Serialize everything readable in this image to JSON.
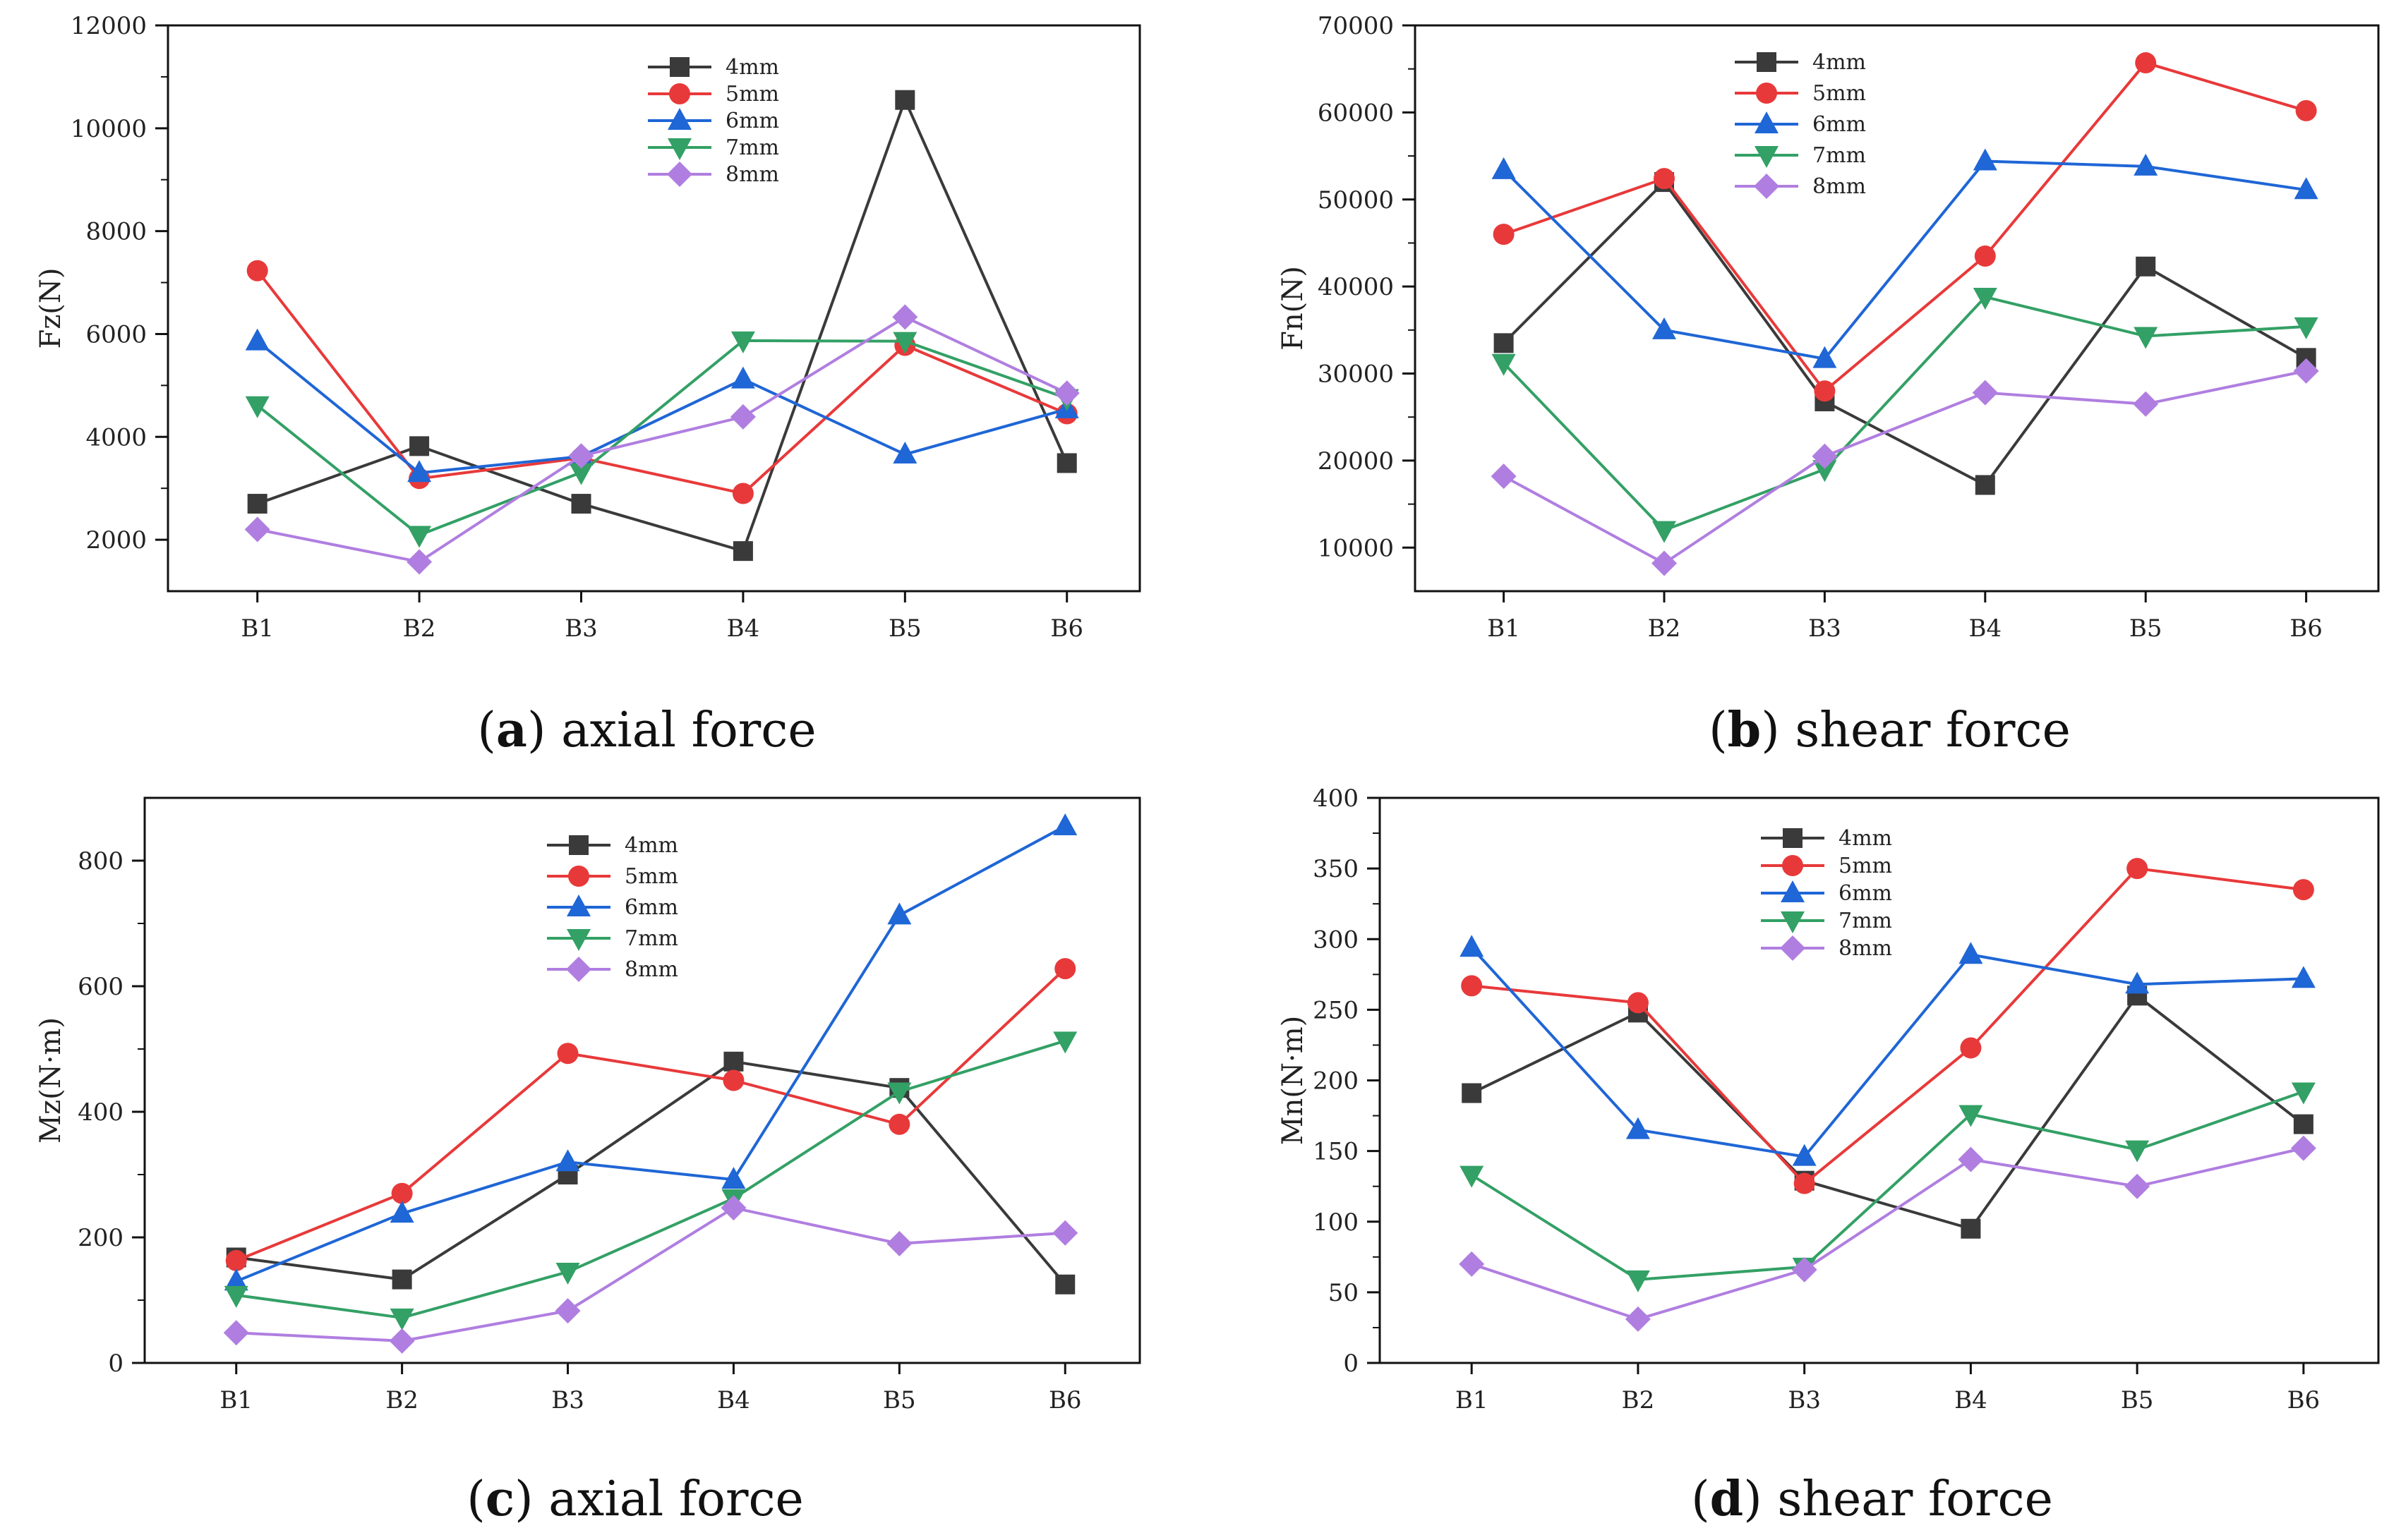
{
  "chart_data": [
    {
      "type": "line",
      "panel_letter": "a",
      "caption": "axial force",
      "ylabel": "Fz(N)",
      "categories": [
        "B1",
        "B2",
        "B3",
        "B4",
        "B5",
        "B6"
      ],
      "ylim": [
        1000,
        12000
      ],
      "yticks": [
        2000,
        4000,
        6000,
        8000,
        10000,
        12000
      ],
      "legend_position": "top-center",
      "series": [
        {
          "name": "4mm",
          "color": "#3a3a3a",
          "marker": "square",
          "values": [
            2700,
            3820,
            2700,
            1780,
            10550,
            3490
          ]
        },
        {
          "name": "5mm",
          "color": "#e8393a",
          "marker": "circle",
          "values": [
            7230,
            3190,
            3590,
            2900,
            5780,
            4450
          ]
        },
        {
          "name": "6mm",
          "color": "#1f66d6",
          "marker": "triangle",
          "values": [
            5860,
            3300,
            3620,
            5120,
            3660,
            4540
          ]
        },
        {
          "name": "7mm",
          "color": "#33a065",
          "marker": "tri-down",
          "values": [
            4610,
            2090,
            3310,
            5870,
            5860,
            4750
          ]
        },
        {
          "name": "8mm",
          "color": "#b07ee0",
          "marker": "diamond",
          "values": [
            2200,
            1570,
            3630,
            4390,
            6330,
            4850
          ]
        }
      ]
    },
    {
      "type": "line",
      "panel_letter": "b",
      "caption": "shear force",
      "ylabel": "Fn(N)",
      "categories": [
        "B1",
        "B2",
        "B3",
        "B4",
        "B5",
        "B6"
      ],
      "ylim": [
        5000,
        70000
      ],
      "yticks": [
        10000,
        20000,
        30000,
        40000,
        50000,
        60000,
        70000
      ],
      "legend_position": "top-center",
      "series": [
        {
          "name": "4mm",
          "color": "#3a3a3a",
          "marker": "square",
          "values": [
            33500,
            52000,
            26800,
            17200,
            42300,
            31800
          ]
        },
        {
          "name": "5mm",
          "color": "#e8393a",
          "marker": "circle",
          "values": [
            46000,
            52400,
            28000,
            43500,
            65700,
            60200
          ]
        },
        {
          "name": "6mm",
          "color": "#1f66d6",
          "marker": "triangle",
          "values": [
            53400,
            35000,
            31700,
            54400,
            53800,
            51100
          ]
        },
        {
          "name": "7mm",
          "color": "#33a065",
          "marker": "tri-down",
          "values": [
            31200,
            12000,
            19000,
            38800,
            34300,
            35400
          ]
        },
        {
          "name": "8mm",
          "color": "#b07ee0",
          "marker": "diamond",
          "values": [
            18200,
            8200,
            20500,
            27800,
            26500,
            30300
          ]
        }
      ]
    },
    {
      "type": "line",
      "panel_letter": "c",
      "caption": "axial force",
      "ylabel": "Mz(N·m)",
      "categories": [
        "B1",
        "B2",
        "B3",
        "B4",
        "B5",
        "B6"
      ],
      "ylim": [
        0,
        900
      ],
      "yticks": [
        0,
        200,
        400,
        600,
        800
      ],
      "legend_position": "top-center",
      "series": [
        {
          "name": "4mm",
          "color": "#3a3a3a",
          "marker": "square",
          "values": [
            168,
            133,
            300,
            480,
            438,
            125
          ]
        },
        {
          "name": "5mm",
          "color": "#e8393a",
          "marker": "circle",
          "values": [
            163,
            270,
            493,
            450,
            380,
            628
          ]
        },
        {
          "name": "6mm",
          "color": "#1f66d6",
          "marker": "triangle",
          "values": [
            130,
            238,
            320,
            292,
            713,
            855
          ]
        },
        {
          "name": "7mm",
          "color": "#33a065",
          "marker": "tri-down",
          "values": [
            108,
            72,
            145,
            262,
            432,
            513
          ]
        },
        {
          "name": "8mm",
          "color": "#b07ee0",
          "marker": "diamond",
          "values": [
            48,
            35,
            83,
            247,
            190,
            207
          ]
        }
      ]
    },
    {
      "type": "line",
      "panel_letter": "d",
      "caption": "shear force",
      "ylabel": "Mn(N·m)",
      "categories": [
        "B1",
        "B2",
        "B3",
        "B4",
        "B5",
        "B6"
      ],
      "ylim": [
        0,
        400
      ],
      "yticks": [
        0,
        50,
        100,
        150,
        200,
        250,
        300,
        350,
        400
      ],
      "legend_position": "top-center",
      "series": [
        {
          "name": "4mm",
          "color": "#3a3a3a",
          "marker": "square",
          "values": [
            191,
            248,
            129,
            95,
            260,
            169
          ]
        },
        {
          "name": "5mm",
          "color": "#e8393a",
          "marker": "circle",
          "values": [
            267,
            255,
            127,
            223,
            350,
            335
          ]
        },
        {
          "name": "6mm",
          "color": "#1f66d6",
          "marker": "triangle",
          "values": [
            294,
            165,
            146,
            289,
            268,
            272
          ]
        },
        {
          "name": "7mm",
          "color": "#33a065",
          "marker": "tri-down",
          "values": [
            133,
            59,
            68,
            176,
            151,
            192
          ]
        },
        {
          "name": "8mm",
          "color": "#b07ee0",
          "marker": "diamond",
          "values": [
            70,
            31,
            66,
            144,
            125,
            152
          ]
        }
      ]
    }
  ]
}
